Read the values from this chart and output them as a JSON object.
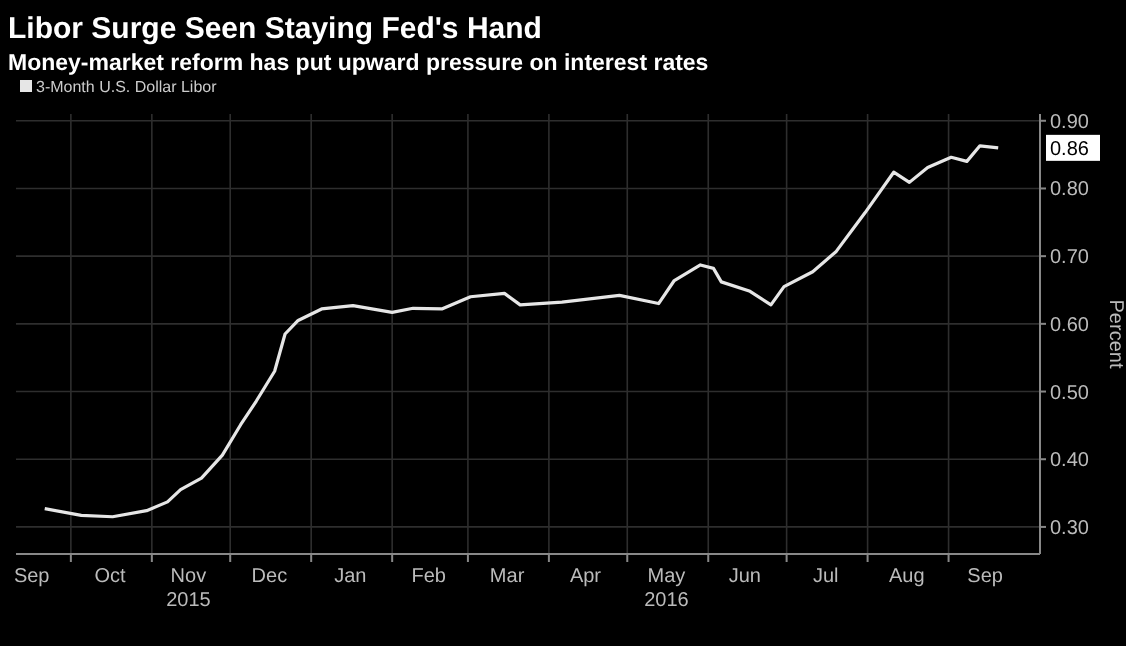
{
  "chart_data": {
    "type": "line",
    "title": "Libor Surge Seen Staying Fed's Hand",
    "subtitle": "Money-market reform has put upward pressure on interest rates",
    "ylabel": "Percent",
    "x": [
      "2015-09-21",
      "2015-10-05",
      "2015-10-17",
      "2015-10-30",
      "2015-11-07",
      "2015-11-12",
      "2015-11-20",
      "2015-11-28",
      "2015-12-05",
      "2015-12-11",
      "2015-12-18",
      "2015-12-22",
      "2015-12-27",
      "2016-01-05",
      "2016-01-17",
      "2016-02-01",
      "2016-02-09",
      "2016-02-20",
      "2016-03-02",
      "2016-03-15",
      "2016-03-21",
      "2016-04-06",
      "2016-04-28",
      "2016-05-13",
      "2016-05-19",
      "2016-05-29",
      "2016-06-03",
      "2016-06-06",
      "2016-06-17",
      "2016-06-25",
      "2016-06-30",
      "2016-07-11",
      "2016-07-20",
      "2016-07-31",
      "2016-08-11",
      "2016-08-17",
      "2016-08-24",
      "2016-09-02",
      "2016-09-08",
      "2016-09-13",
      "2016-09-20"
    ],
    "series": [
      {
        "name": "3-Month U.S. Dollar Libor",
        "color": "#e6e6e6",
        "values": [
          0.327,
          0.317,
          0.315,
          0.324,
          0.337,
          0.355,
          0.372,
          0.406,
          0.451,
          0.486,
          0.53,
          0.585,
          0.605,
          0.622,
          0.627,
          0.617,
          0.623,
          0.622,
          0.64,
          0.645,
          0.628,
          0.632,
          0.642,
          0.63,
          0.664,
          0.687,
          0.682,
          0.662,
          0.648,
          0.628,
          0.655,
          0.677,
          0.707,
          0.764,
          0.824,
          0.809,
          0.831,
          0.846,
          0.84,
          0.863,
          0.86
        ]
      }
    ],
    "xlim": [
      "2015-09-10",
      "2016-10-06"
    ],
    "xticks": [
      {
        "value": "2015-09-16",
        "label": "Sep"
      },
      {
        "value": "2015-10-01",
        "label": null
      },
      {
        "value": "2015-10-16",
        "label": "Oct"
      },
      {
        "value": "2015-11-01",
        "label": null
      },
      {
        "value": "2015-11-15",
        "label": "Nov\n2015"
      },
      {
        "value": "2015-12-01",
        "label": null
      },
      {
        "value": "2015-12-16",
        "label": "Dec"
      },
      {
        "value": "2016-01-01",
        "label": null
      },
      {
        "value": "2016-01-16",
        "label": "Jan"
      },
      {
        "value": "2016-02-01",
        "label": null
      },
      {
        "value": "2016-02-15",
        "label": "Feb"
      },
      {
        "value": "2016-03-01",
        "label": null
      },
      {
        "value": "2016-03-16",
        "label": "Mar"
      },
      {
        "value": "2016-04-01",
        "label": null
      },
      {
        "value": "2016-04-15",
        "label": "Apr"
      },
      {
        "value": "2016-05-01",
        "label": null
      },
      {
        "value": "2016-05-16",
        "label": "May\n2016"
      },
      {
        "value": "2016-06-01",
        "label": null
      },
      {
        "value": "2016-06-15",
        "label": "Jun"
      },
      {
        "value": "2016-07-01",
        "label": null
      },
      {
        "value": "2016-07-16",
        "label": "Jul"
      },
      {
        "value": "2016-08-01",
        "label": null
      },
      {
        "value": "2016-08-16",
        "label": "Aug"
      },
      {
        "value": "2016-09-01",
        "label": null
      },
      {
        "value": "2016-09-15",
        "label": "Sep"
      }
    ],
    "ylim": [
      0.26,
      0.91
    ],
    "yticks": [
      {
        "value": 0.3,
        "label": "0.30"
      },
      {
        "value": 0.4,
        "label": "0.40"
      },
      {
        "value": 0.5,
        "label": "0.50"
      },
      {
        "value": 0.6,
        "label": "0.60"
      },
      {
        "value": 0.7,
        "label": "0.70"
      },
      {
        "value": 0.8,
        "label": "0.80"
      },
      {
        "value": 0.9,
        "label": "0.90"
      }
    ],
    "annotations": [
      {
        "text": "0.86",
        "x": "2016-09-20",
        "y": 0.86
      }
    ],
    "grid": true,
    "legend": "top left",
    "line_style": "solid"
  }
}
